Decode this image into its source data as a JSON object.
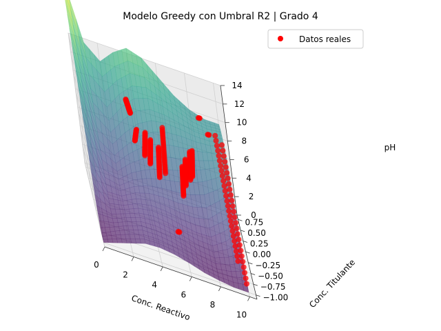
{
  "chart_data": {
    "type": "surface3d_scatter",
    "title": "Modelo Greedy con Umbral R2 | Grado 4",
    "xlabel": "Conc. Reactivo",
    "ylabel": "Conc. Titulante",
    "zlabel": "pH",
    "x_ticks": [
      "0",
      "2",
      "4",
      "6",
      "8",
      "10"
    ],
    "y_ticks": [
      "−1.00",
      "−0.75",
      "−0.50",
      "−0.25",
      "0.00",
      "0.25",
      "0.50",
      "0.75"
    ],
    "z_ticks": [
      "0",
      "2",
      "4",
      "6",
      "8",
      "10",
      "12",
      "14"
    ],
    "xlim": [
      0,
      10.5
    ],
    "ylim": [
      -1.1,
      0.85
    ],
    "zlim": [
      0,
      14
    ],
    "grid": true,
    "legend_position": "top-right",
    "surface": {
      "name": "",
      "colormap": "viridis",
      "grid_x": [
        0,
        1,
        2,
        3,
        4,
        5,
        6,
        7,
        8,
        9,
        10
      ],
      "grid_y": [
        -1.0,
        -0.75,
        -0.5,
        -0.25,
        0.0,
        0.25,
        0.5,
        0.75
      ],
      "z": [
        [
          0.0,
          0.5,
          1.0,
          1.5,
          1.6,
          1.4,
          1.0,
          0.5,
          0.2,
          0.0,
          0.0
        ],
        [
          0.0,
          0.8,
          1.5,
          2.0,
          2.0,
          1.8,
          1.4,
          0.8,
          0.5,
          0.8,
          1.5
        ],
        [
          1.5,
          1.2,
          1.8,
          2.4,
          2.6,
          2.4,
          2.0,
          1.6,
          1.5,
          2.5,
          4.0
        ],
        [
          4.5,
          2.0,
          2.2,
          3.0,
          3.4,
          3.4,
          3.2,
          3.2,
          3.6,
          5.0,
          6.5
        ],
        [
          8.5,
          3.5,
          3.0,
          4.2,
          5.0,
          5.6,
          6.0,
          6.5,
          7.2,
          8.0,
          9.0
        ],
        [
          13.0,
          6.0,
          4.8,
          6.5,
          8.0,
          9.0,
          9.5,
          9.6,
          9.5,
          9.6,
          10.0
        ],
        [
          17.0,
          9.5,
          8.0,
          10.0,
          11.5,
          12.0,
          11.5,
          10.8,
          10.2,
          10.0,
          10.2
        ],
        [
          21.0,
          14.0,
          12.5,
          14.0,
          15.0,
          14.5,
          13.0,
          11.5,
          10.5,
          10.0,
          10.0
        ]
      ]
    },
    "series": [
      {
        "name": "Datos reales",
        "color": "#ff0000",
        "type": "scatter",
        "lines": [
          {
            "x": 3.5,
            "y": [
              0.75,
              0.15
            ],
            "z": [
              9.2,
              10.5
            ]
          },
          {
            "x": 3.7,
            "y": [
              0.5,
              -0.1
            ],
            "z": [
              6.0,
              10.0
            ]
          },
          {
            "x": 4.3,
            "y": [
              0.55,
              -0.1
            ],
            "z": [
              4.5,
              10.0
            ]
          },
          {
            "x": 4.6,
            "y": [
              0.5,
              -0.15
            ],
            "z": [
              4.0,
              9.6
            ]
          },
          {
            "x": 5.1,
            "y": [
              0.35,
              -0.2
            ],
            "z": [
              3.5,
              9.3
            ]
          },
          {
            "x": 5.6,
            "y": [
              0.5,
              -0.05
            ],
            "z": [
              3.5,
              11.0
            ]
          },
          {
            "x": 6.6,
            "y": [
              0.2,
              -0.3
            ],
            "z": [
              3.0,
              8.5
            ]
          },
          {
            "x": 6.9,
            "y": [
              0.3,
              -0.25
            ],
            "z": [
              3.8,
              9.2
            ]
          },
          {
            "x": 7.3,
            "y": [
              0.35,
              -0.2
            ],
            "z": [
              4.4,
              10.0
            ]
          },
          {
            "x": 7.5,
            "y": [
              0.45,
              -0.15
            ],
            "z": [
              4.4,
              10.0
            ]
          },
          {
            "x": 5.6,
            "y": [
              -0.75,
              -0.75
            ],
            "z": [
              3.0,
              3.0
            ]
          },
          {
            "x": 9.6,
            "y": [
              -0.75,
              0.7
            ],
            "z": [
              2.0,
              8.8
            ]
          },
          {
            "x": 10.0,
            "y": [
              -0.8,
              0.7
            ],
            "z": [
              0.0,
              8.0
            ]
          },
          {
            "x": 9.0,
            "y": [
              0.35,
              0.35
            ],
            "z": [
              10.2,
              10.2
            ]
          },
          {
            "x": 8.5,
            "y": [
              0.4,
              0.4
            ],
            "z": [
              11.5,
              11.5
            ]
          }
        ]
      }
    ]
  }
}
